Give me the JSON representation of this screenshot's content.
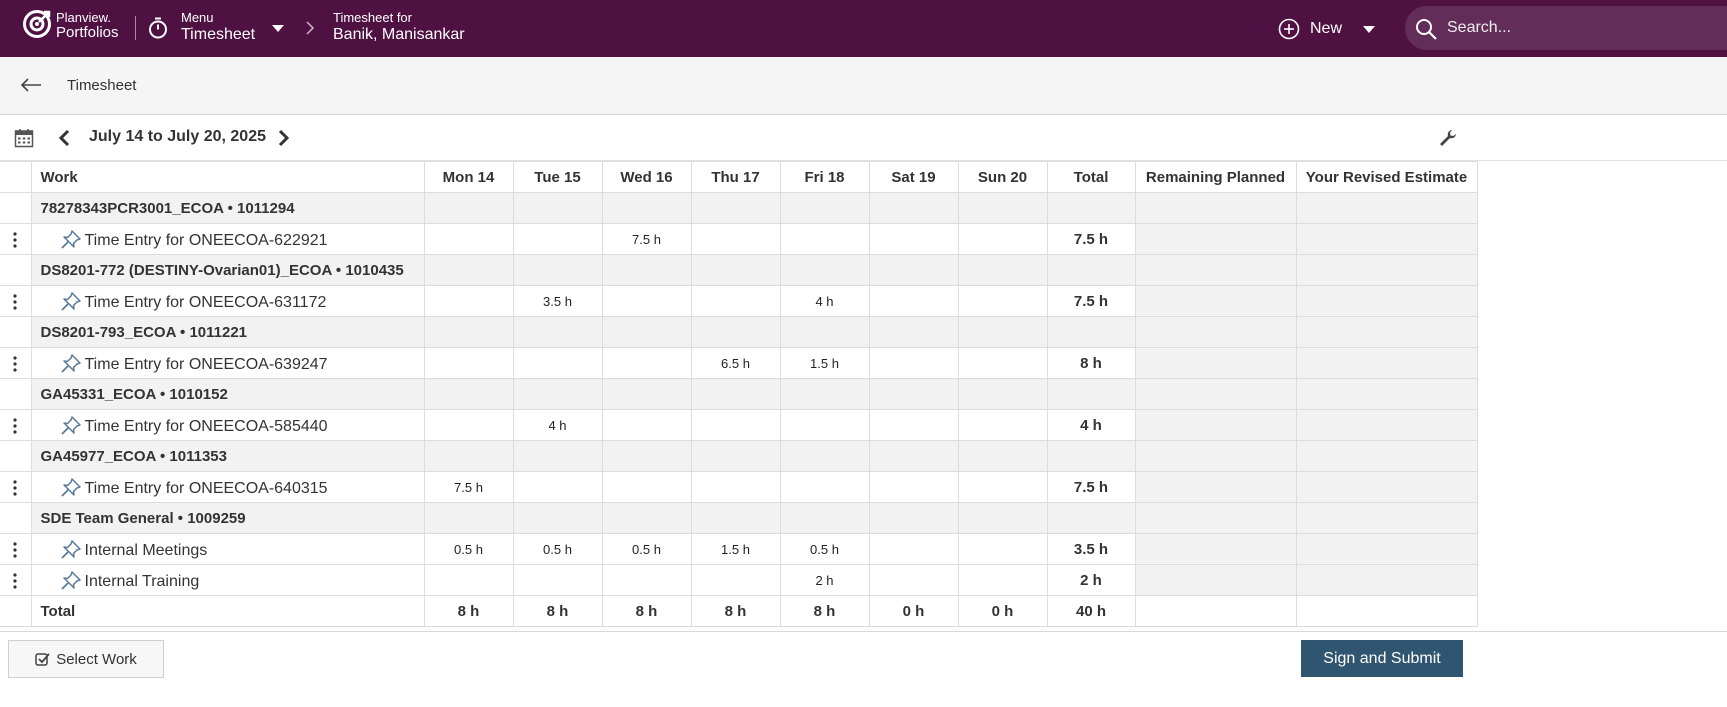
{
  "header": {
    "brand_line1": "Planview.",
    "brand_line2": "Portfolios",
    "menu_small": "Menu",
    "menu_big": "Timesheet",
    "timesheet_for_small": "Timesheet for",
    "timesheet_for_name": "Banik, Manisankar",
    "new_label": "New",
    "search_placeholder": "Search..."
  },
  "subheader": {
    "title": "Timesheet"
  },
  "toolbar": {
    "date_range": "July 14 to July 20, 2025"
  },
  "grid": {
    "columns": [
      "Work",
      "Mon 14",
      "Tue 15",
      "Wed 16",
      "Thu 17",
      "Fri 18",
      "Sat 19",
      "Sun 20",
      "Total",
      "Remaining Planned",
      "Your Revised Estimate"
    ],
    "groups": [
      {
        "name": "78278343PCR3001_ECOA • 1011294",
        "entries": [
          {
            "name": "Time Entry for ONEECOA-622921",
            "days": [
              "",
              "",
              "7.5 h",
              "",
              "",
              "",
              ""
            ],
            "total": "7.5 h"
          }
        ]
      },
      {
        "name": "DS8201-772 (DESTINY-Ovarian01)_ECOA • 1010435",
        "entries": [
          {
            "name": "Time Entry for ONEECOA-631172",
            "days": [
              "",
              "3.5 h",
              "",
              "",
              "4 h",
              "",
              ""
            ],
            "total": "7.5 h"
          }
        ]
      },
      {
        "name": "DS8201-793_ECOA • 1011221",
        "entries": [
          {
            "name": "Time Entry for ONEECOA-639247",
            "days": [
              "",
              "",
              "",
              "6.5 h",
              "1.5 h",
              "",
              ""
            ],
            "total": "8 h"
          }
        ]
      },
      {
        "name": "GA45331_ECOA • 1010152",
        "entries": [
          {
            "name": "Time Entry for ONEECOA-585440",
            "days": [
              "",
              "4 h",
              "",
              "",
              "",
              "",
              ""
            ],
            "total": "4 h"
          }
        ]
      },
      {
        "name": "GA45977_ECOA • 1011353",
        "entries": [
          {
            "name": "Time Entry for ONEECOA-640315",
            "days": [
              "7.5 h",
              "",
              "",
              "",
              "",
              "",
              ""
            ],
            "total": "7.5 h"
          }
        ]
      },
      {
        "name": "SDE Team General • 1009259",
        "entries": [
          {
            "name": "Internal Meetings",
            "days": [
              "0.5 h",
              "0.5 h",
              "0.5 h",
              "1.5 h",
              "0.5 h",
              "",
              ""
            ],
            "total": "3.5 h"
          },
          {
            "name": "Internal Training",
            "days": [
              "",
              "",
              "",
              "",
              "2 h",
              "",
              ""
            ],
            "total": "2 h"
          }
        ]
      }
    ],
    "totals": {
      "label": "Total",
      "days": [
        "8 h",
        "8 h",
        "8 h",
        "8 h",
        "8 h",
        "0 h",
        "0 h"
      ],
      "total": "40 h"
    }
  },
  "footer": {
    "select_work": "Select Work",
    "submit": "Sign and Submit"
  },
  "colors": {
    "header_bg": "#4e1142",
    "submit_bg": "#2f5570"
  }
}
